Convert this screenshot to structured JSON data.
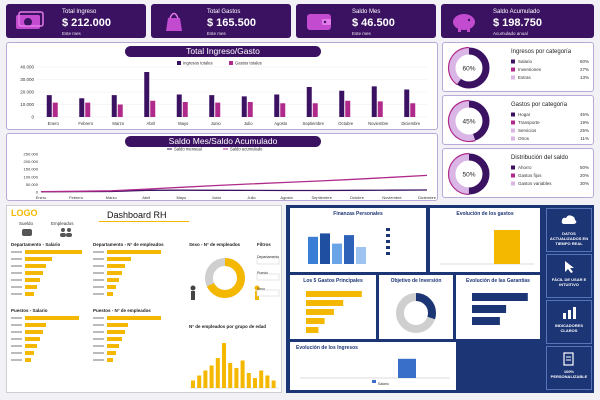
{
  "kpis": [
    {
      "title": "Total Ingreso",
      "value": "$ 212.000",
      "sub": "Este mes",
      "icon": "money-icon"
    },
    {
      "title": "Total Gastos",
      "value": "$ 165.500",
      "sub": "Este mes",
      "icon": "shopping-bag-icon"
    },
    {
      "title": "Saldo Mes",
      "value": "$ 46.500",
      "sub": "Este mes",
      "icon": "wallet-icon"
    },
    {
      "title": "Saldo Acumulado",
      "value": "$ 198.750",
      "sub": "Acumulado anual",
      "icon": "piggy-bank-icon"
    }
  ],
  "chart_data": [
    {
      "type": "bar",
      "title": "Total Ingreso/Gasto",
      "categories": [
        "Enero",
        "Febrero",
        "Marzo",
        "Abril",
        "Mayo",
        "Junio",
        "Julio",
        "Agosto",
        "Septiembre",
        "Octubre",
        "Noviembre",
        "Diciembre"
      ],
      "series": [
        {
          "name": "Ingresos totales",
          "values": [
            17500,
            15000,
            17500,
            36000,
            18000,
            17500,
            16500,
            18000,
            24000,
            21000,
            24500,
            22000
          ]
        },
        {
          "name": "Gastos totales",
          "values": [
            11500,
            11500,
            10000,
            13000,
            12000,
            11500,
            12000,
            11000,
            11000,
            13000,
            12500,
            11000
          ]
        }
      ],
      "yticks": [
        "40.000",
        "30.000",
        "20.000",
        "10.000",
        "0"
      ],
      "ylim": [
        0,
        40000
      ],
      "legend": "top"
    },
    {
      "type": "line",
      "title": "Saldo Mes/Saldo Acumulado",
      "categories": [
        "Enero",
        "Febrero",
        "Marzo",
        "Abril",
        "Mayo",
        "Junio",
        "Julio",
        "Agosto",
        "Septiembre",
        "Octubre",
        "Noviembre",
        "Diciembre"
      ],
      "series": [
        {
          "name": "Saldo mensual",
          "values": [
            2000,
            2500,
            3500,
            11000,
            12000,
            11500,
            10500,
            10000,
            10000,
            11500,
            12000,
            13000
          ]
        },
        {
          "name": "Saldo acumulado",
          "values": [
            2000,
            4500,
            8000,
            19000,
            31000,
            42500,
            53000,
            63000,
            73000,
            84500,
            96500,
            109500
          ]
        }
      ],
      "yticks": [
        "250.000",
        "200.000",
        "150.000",
        "100.000",
        "50.000",
        "0"
      ],
      "ylim": [
        0,
        250000
      ],
      "legend": "top"
    }
  ],
  "main": {
    "title1": "Total Ingreso/Gasto",
    "title2": "Saldo Mes/Saldo Acumulado"
  },
  "donuts": [
    {
      "title": "Ingresos por categoría",
      "pct": "60%",
      "fill": 0.6,
      "items": [
        {
          "label": "Salario",
          "value": "60%"
        },
        {
          "label": "Inversiones",
          "value": "27%"
        },
        {
          "label": "Extras",
          "value": "13%"
        }
      ]
    },
    {
      "title": "Gastos por categoría",
      "pct": "45%",
      "fill": 0.45,
      "items": [
        {
          "label": "Hogar",
          "value": "45%"
        },
        {
          "label": "Transporte",
          "value": "19%"
        },
        {
          "label": "Servicios",
          "value": "25%"
        },
        {
          "label": "Otros",
          "value": "11%"
        }
      ]
    },
    {
      "title": "Distribución del saldo",
      "pct": "50%",
      "fill": 0.5,
      "items": [
        {
          "label": "Ahorro",
          "value": "50%"
        },
        {
          "label": "Gastos fijos",
          "value": "20%"
        },
        {
          "label": "Gastos variables",
          "value": "30%"
        }
      ]
    }
  ],
  "rh": {
    "logo": "LOGO",
    "title": "Dashboard RH",
    "sec1": "Sueldo",
    "sec2": "Empleados",
    "dept_salary": "Departamento - Salario",
    "dept_employees": "Departamento - N° de empleados",
    "sexo": "Sexo - N° de empleados",
    "filtros": "Filtros",
    "filter_labels": [
      "Departamento",
      "Puesto",
      "Sexo"
    ],
    "puestos_salary": "Puestos - Salario",
    "puestos_employees": "Puestos - N° de empleados",
    "age_groups": "N° de empleados por grupo de edad",
    "dept_salary_values": [
      0.95,
      0.45,
      0.35,
      0.3,
      0.25,
      0.2,
      0.15
    ],
    "dept_emp_values": [
      0.9,
      0.4,
      0.3,
      0.25,
      0.2,
      0.15,
      0.1
    ],
    "puestos_salary_values": [
      0.9,
      0.35,
      0.3,
      0.25,
      0.2,
      0.15,
      0.1
    ],
    "puestos_emp_values": [
      0.9,
      0.35,
      0.3,
      0.25,
      0.2,
      0.15,
      0.1
    ],
    "age_values": [
      0.15,
      0.25,
      0.35,
      0.45,
      0.6,
      0.9,
      0.5,
      0.4,
      0.55,
      0.3,
      0.2,
      0.35,
      0.25,
      0.15
    ],
    "sexo_fill": 0.68
  },
  "finanzas": {
    "title": "Finanzas Personales",
    "evol_gastos": "Evolución de los gastos",
    "top_gastos": "Los 5 Gastos Principales",
    "objetivo": "Objetivo de Inversión",
    "garantias": "Evolución de las Garantías",
    "ingresos": "Evolución de los Ingresos",
    "ingresos_legend": "Salario",
    "fp_bars": [
      0.8,
      0.9,
      0.6,
      0.85,
      0.5
    ],
    "evol_bar": 0.85,
    "top_values": [
      0.9,
      0.6,
      0.45,
      0.3,
      0.2
    ],
    "obj_fill": 0.3,
    "gar_values": [
      0.9,
      0.55,
      0.45
    ],
    "ingresos_bar": 0.8
  },
  "side": [
    {
      "label": "DATOS ACTUALIZADOS EN TIEMPO REAL",
      "icon": "cloud-upload-icon"
    },
    {
      "label": "FÁCIL DE USAR E INTUITIVO",
      "icon": "cursor-click-icon"
    },
    {
      "label": "INDICADORES CLAROS",
      "icon": "bar-chart-icon"
    },
    {
      "label": "100% PERSONALIZABLE",
      "icon": "edit-document-icon"
    }
  ],
  "colors": {
    "purple_dark": "#3b1262",
    "purple": "#5a1f8f",
    "magenta": "#b02a8c",
    "yellow": "#f5b800",
    "navy": "#1c3575"
  }
}
